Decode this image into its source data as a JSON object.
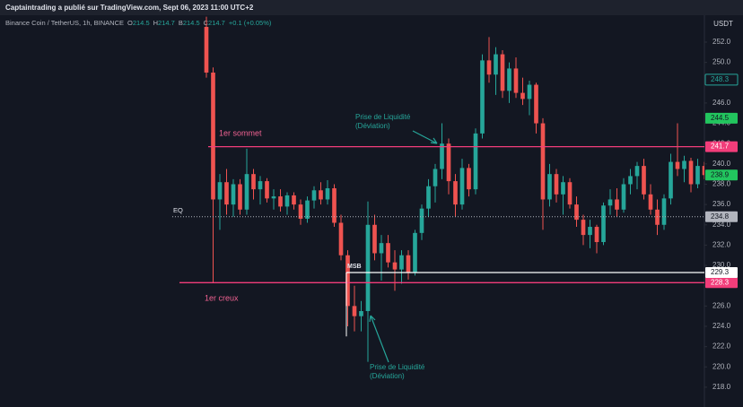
{
  "header": {
    "title": "Captaintrading a publié sur TradingView.com, Sept 06, 2023 11:00 UTC+2"
  },
  "legend": {
    "symbol": "Binance Coin / TetherUS, 1h, BINANCE",
    "fields": [
      {
        "label": "O",
        "value": 214.5
      },
      {
        "label": "H",
        "value": 214.7
      },
      {
        "label": "B",
        "value": 214.5
      },
      {
        "label": "C",
        "value": 214.7
      }
    ],
    "change": "+0.1 (+0.05%)"
  },
  "annotations": {
    "top": "1er sommet",
    "bottom": "1er creux",
    "eq": "EQ",
    "msb": "MSB",
    "liquidity_1": [
      "Prise de Liquidité",
      "(Déviation)"
    ],
    "liquidity_2": [
      "Prise de Liquidité",
      "(Déviation)"
    ]
  },
  "chart_data": {
    "type": "candlestick",
    "currency": "USDT",
    "up_color": "#26a69a",
    "down_color": "#ef5350",
    "ylim": [
      216.05,
      254.56
    ],
    "yticks": [
      {
        "value": 218,
        "label": "218.0"
      },
      {
        "value": 220,
        "label": "220.0"
      },
      {
        "value": 222,
        "label": "222.0"
      },
      {
        "value": 224,
        "label": "224.0"
      },
      {
        "value": 226,
        "label": "226.0"
      },
      {
        "value": 228,
        "label": "228.0"
      },
      {
        "value": 230,
        "label": "230.0"
      },
      {
        "value": 232,
        "label": "232.0"
      },
      {
        "value": 234,
        "label": "234.0"
      },
      {
        "value": 236,
        "label": "236.0"
      },
      {
        "value": 238,
        "label": "238.0"
      },
      {
        "value": 240,
        "label": "240.0"
      },
      {
        "value": 242,
        "label": "242.0"
      },
      {
        "value": 244,
        "label": "244.0"
      },
      {
        "value": 246,
        "label": "246.0"
      },
      {
        "value": 248,
        "label": "248.0"
      },
      {
        "value": 250,
        "label": "250.0"
      },
      {
        "value": 252,
        "label": "252.0"
      }
    ],
    "open": [
      253.5,
      249,
      236.5,
      238.2,
      236,
      238,
      235.5,
      239,
      237.5,
      238.3,
      236.6,
      236.8,
      235.8,
      236.9,
      236,
      234.6,
      236.4,
      237.4,
      236.5,
      237.6,
      234.2,
      231,
      226,
      225,
      225.5,
      234,
      231.2,
      232.2,
      230.3,
      229.6,
      231,
      229.3,
      233.2,
      235.6,
      237.8,
      239.5,
      242,
      238.3,
      236,
      239.6,
      237.5,
      243,
      250.2,
      248.8,
      250.8,
      247.2,
      249.4,
      247,
      246.4,
      247.8,
      244,
      236.5,
      239,
      237,
      238.2,
      236,
      234.5,
      233,
      233.8,
      232.3,
      235.9,
      236.5,
      235.5,
      238,
      238.8,
      239.8,
      237,
      235.5,
      234,
      236.6,
      240.2,
      239.5,
      240.3,
      238,
      239.8
    ],
    "high": [
      254.5,
      249.5,
      239,
      239.5,
      238.5,
      238.5,
      241.5,
      239.5,
      238.8,
      238.6,
      237.5,
      237.5,
      237.2,
      237.2,
      236.5,
      236.8,
      237.8,
      238.2,
      238.4,
      238,
      235,
      231.5,
      228,
      226.5,
      236.3,
      235,
      233,
      233,
      231.5,
      231.5,
      231.5,
      233.5,
      236,
      238.5,
      240,
      244,
      242.5,
      239,
      240.5,
      240,
      243.5,
      250.8,
      252.5,
      251.5,
      251.2,
      250,
      250.5,
      248.5,
      248.2,
      248,
      244.5,
      240,
      239.5,
      238.8,
      238.6,
      236.8,
      235,
      234.5,
      234,
      236.2,
      237.5,
      237.6,
      238.6,
      239.5,
      240.2,
      240.5,
      238,
      236.5,
      237,
      241,
      244,
      240.8,
      240.6,
      240.5,
      240.2
    ],
    "low": [
      248.5,
      228.3,
      233.5,
      235,
      234.8,
      235,
      235,
      236.5,
      236,
      236.2,
      235.5,
      235.3,
      235,
      235.5,
      234,
      234.2,
      235.6,
      236,
      236,
      233.8,
      230.5,
      224,
      223.5,
      223.5,
      220.5,
      230.5,
      228.5,
      229.8,
      227.5,
      228.2,
      228.6,
      229,
      232.5,
      234.8,
      236.2,
      238.5,
      237,
      234.8,
      235.5,
      236.8,
      237,
      242.5,
      248,
      246.8,
      246.5,
      246,
      246.5,
      245.8,
      244.8,
      243,
      233.5,
      235.8,
      236.2,
      235,
      235.6,
      233.8,
      232,
      231.7,
      231.2,
      232,
      235,
      234.8,
      235.2,
      237,
      237.5,
      236.5,
      235,
      233,
      233.5,
      236,
      238.8,
      238.2,
      237.2,
      237.6,
      238.5
    ],
    "close": [
      249,
      236.5,
      238.2,
      236,
      238,
      235.5,
      239,
      237.5,
      238.3,
      236.6,
      236.8,
      235.8,
      236.9,
      236,
      234.6,
      236.4,
      237.4,
      236.5,
      237.6,
      234.2,
      231,
      226,
      225,
      225.5,
      234,
      231.2,
      232.2,
      230.3,
      229.6,
      231,
      229.3,
      233.2,
      235.6,
      237.8,
      239.5,
      242,
      238.3,
      236,
      239.6,
      237.5,
      243,
      250.2,
      248.8,
      250.8,
      247.2,
      249.4,
      247,
      246.4,
      247.8,
      244,
      236.5,
      239,
      237,
      238.2,
      236,
      234.5,
      233,
      233.8,
      232.3,
      235.9,
      236.5,
      235.5,
      238,
      238.8,
      239.8,
      237,
      235.5,
      234,
      236.6,
      240.2,
      239.5,
      240.3,
      238,
      239.8,
      238.9
    ],
    "levels": [
      {
        "value": 241.7,
        "color": "#f23d7a",
        "tag_text": "#ffffff"
      },
      {
        "value": 228.3,
        "color": "#f23d7a",
        "tag_text": "#ffffff"
      },
      {
        "value": 229.3,
        "color": "#ffffff",
        "tag_text": "#131722"
      },
      {
        "value": 234.8,
        "color": "#b2b5be",
        "tag_text": "#131722",
        "dotted": true
      }
    ],
    "tags": [
      {
        "value": 248.3,
        "color": "#131722",
        "border": "#26a69a",
        "tag_text": "#26a69a"
      },
      {
        "value": 244.5,
        "color": "#22c55e",
        "tag_text": "#131722"
      },
      {
        "value": 238.9,
        "color": "#22c55e",
        "tag_text": "#131722"
      }
    ]
  }
}
